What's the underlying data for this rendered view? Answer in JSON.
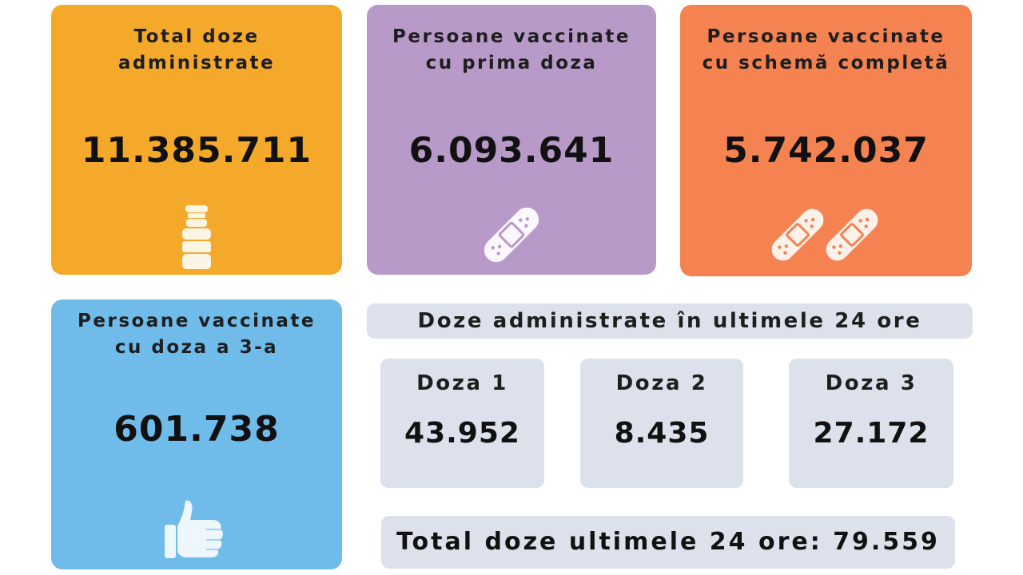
{
  "cards": {
    "total": {
      "title_line1": "Total doze",
      "title_line2": "administrate",
      "value": "11.385.711",
      "icon": "vaccine-vial-icon",
      "color": "#f5a92b"
    },
    "first_dose": {
      "title_line1": "Persoane vaccinate",
      "title_line2": "cu prima doza",
      "value": "6.093.641",
      "icon": "bandage-icon",
      "color": "#b89ac9"
    },
    "complete": {
      "title_line1": "Persoane vaccinate",
      "title_line2": "cu schemă completă",
      "value": "5.742.037",
      "icon": "double-bandage-icon",
      "color": "#f58251"
    },
    "third_dose": {
      "title_line1": "Persoane  vaccinate",
      "title_line2": "cu doza a 3-a",
      "value": "601.738",
      "icon": "thumbs-up-icon",
      "color": "#6fbbe9"
    }
  },
  "last24h": {
    "header": "Doze administrate în ultimele 24 ore",
    "doses": [
      {
        "label": "Doza 1",
        "value": "43.952"
      },
      {
        "label": "Doza 2",
        "value": "8.435"
      },
      {
        "label": "Doza 3",
        "value": "27.172"
      }
    ],
    "total_text": "Total doze ultimele 24 ore: 79.559",
    "box_color": "#dde1ec"
  }
}
